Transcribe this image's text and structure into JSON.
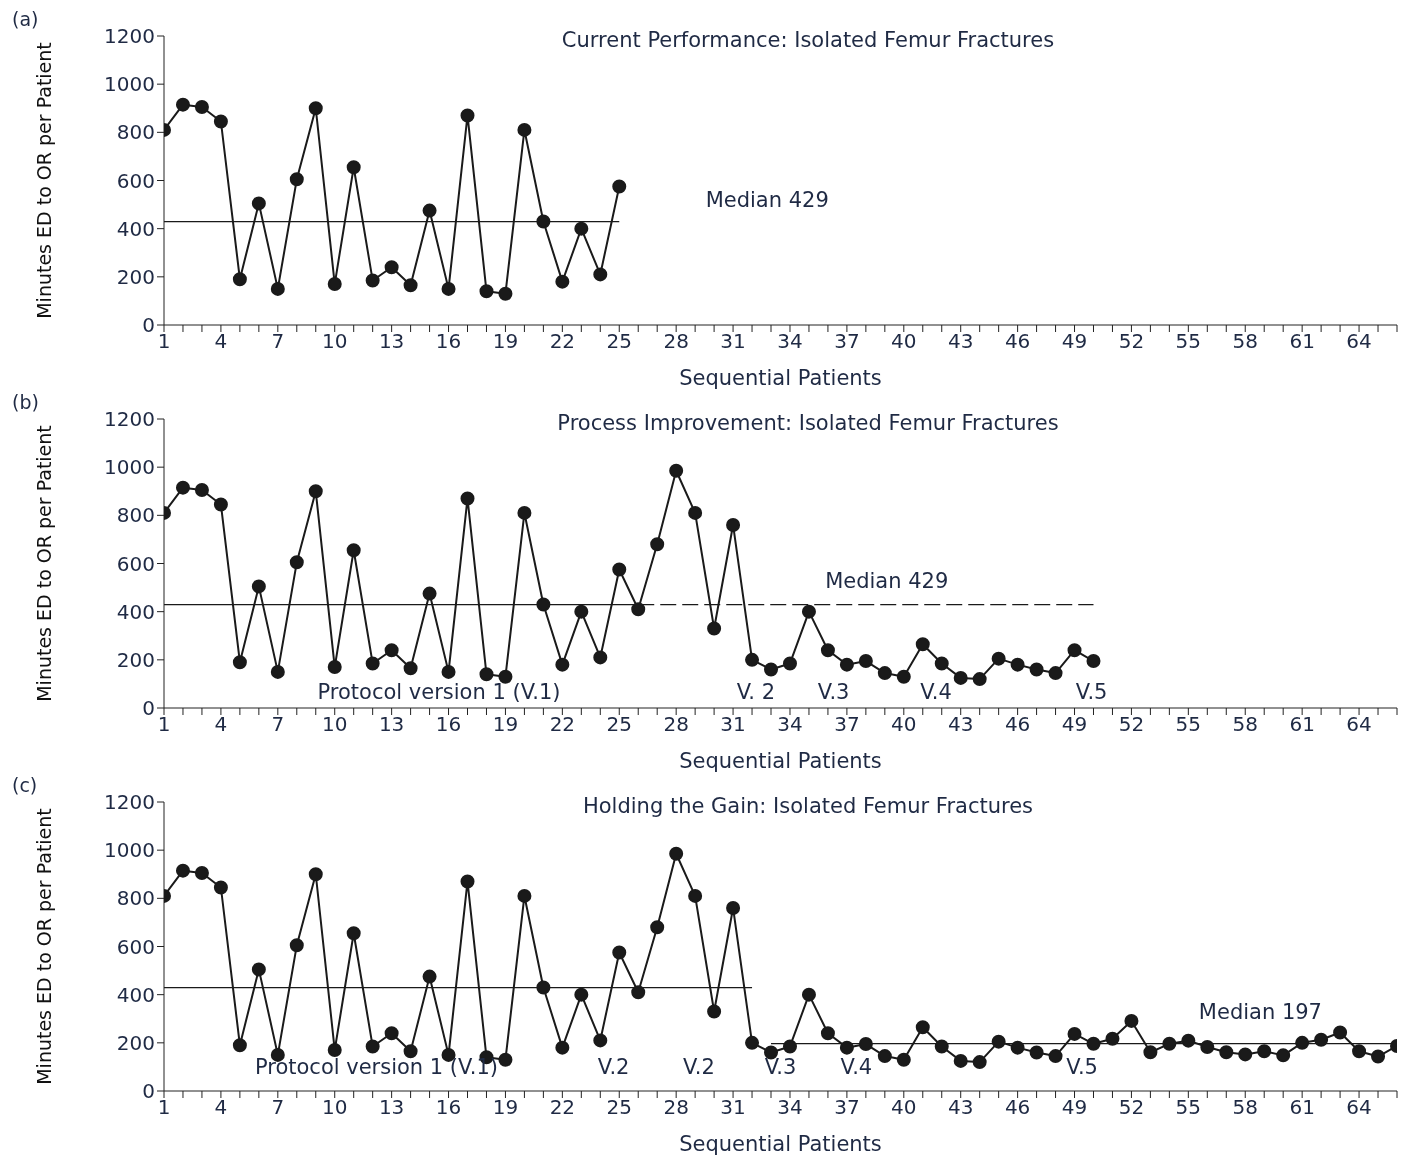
{
  "chart_data": [
    {
      "type": "line",
      "title": "Current Performance: Isolated Femur Fractures",
      "xlabel": "Sequential Patients",
      "ylabel": "Minutes ED to OR per Patient",
      "xlim": [
        1,
        66
      ],
      "ylim": [
        0,
        1200
      ],
      "yticks": [
        0,
        200,
        400,
        600,
        800,
        1000,
        1200
      ],
      "xticks": [
        1,
        {
          "value": 2,
          "label": null
        },
        {
          "value": 3,
          "label": null
        },
        4,
        {
          "value": 5,
          "label": null
        },
        {
          "value": 6,
          "label": null
        },
        7,
        {
          "value": 8,
          "label": null
        },
        {
          "value": 9,
          "label": null
        },
        10,
        {
          "value": 11,
          "label": null
        },
        {
          "value": 12,
          "label": null
        },
        13,
        {
          "value": 14,
          "label": null
        },
        {
          "value": 15,
          "label": null
        },
        16,
        {
          "value": 17,
          "label": null
        },
        {
          "value": 18,
          "label": null
        },
        19,
        {
          "value": 20,
          "label": null
        },
        {
          "value": 21,
          "label": null
        },
        22,
        {
          "value": 23,
          "label": null
        },
        {
          "value": 24,
          "label": null
        },
        25,
        {
          "value": 26,
          "label": null
        },
        {
          "value": 27,
          "label": null
        },
        28,
        {
          "value": 29,
          "label": null
        },
        {
          "value": 30,
          "label": null
        },
        31,
        {
          "value": 32,
          "label": null
        },
        {
          "value": 33,
          "label": null
        },
        34,
        {
          "value": 35,
          "label": null
        },
        {
          "value": 36,
          "label": null
        },
        37,
        {
          "value": 38,
          "label": null
        },
        {
          "value": 39,
          "label": null
        },
        40,
        {
          "value": 41,
          "label": null
        },
        {
          "value": 42,
          "label": null
        },
        43,
        {
          "value": 44,
          "label": null
        },
        {
          "value": 45,
          "label": null
        },
        46,
        {
          "value": 47,
          "label": null
        },
        {
          "value": 48,
          "label": null
        },
        49,
        {
          "value": 50,
          "label": null
        },
        {
          "value": 51,
          "label": null
        },
        52,
        {
          "value": 53,
          "label": null
        },
        {
          "value": 54,
          "label": null
        },
        55,
        {
          "value": 56,
          "label": null
        },
        {
          "value": 57,
          "label": null
        },
        58,
        {
          "value": 59,
          "label": null
        },
        {
          "value": 60,
          "label": null
        },
        61,
        {
          "value": 62,
          "label": null
        },
        {
          "value": 63,
          "label": null
        },
        64,
        {
          "value": 65,
          "label": null
        },
        {
          "value": 66,
          "label": null
        }
      ],
      "series": [
        {
          "color": "#1a1a1a",
          "marker": "circle",
          "x": [
            1,
            2,
            3,
            4,
            5,
            6,
            7,
            8,
            9,
            10,
            11,
            12,
            13,
            14,
            15,
            16,
            17,
            18,
            19,
            20,
            21,
            22,
            23,
            24,
            25
          ],
          "values": [
            810,
            915,
            905,
            845,
            190,
            505,
            150,
            605,
            900,
            170,
            655,
            185,
            240,
            165,
            475,
            150,
            870,
            140,
            130,
            810,
            430,
            180,
            400,
            210,
            575
          ]
        },
        {
          "type": "line",
          "name": "Median 429",
          "color": "#1a1a1a",
          "marker": "none",
          "line_style": "solid",
          "x": [
            1,
            25
          ],
          "values": [
            429,
            429
          ]
        }
      ],
      "annotations": [
        "(a)"
      ]
    },
    {
      "type": "line",
      "title": "Process Improvement: Isolated Femur Fractures",
      "xlabel": "Sequential Patients",
      "ylabel": "Minutes ED to OR per Patient",
      "xlim": [
        1,
        66
      ],
      "ylim": [
        0,
        1200
      ],
      "yticks": [
        0,
        200,
        400,
        600,
        800,
        1000,
        1200
      ],
      "xticks": [
        1,
        {
          "value": 2,
          "label": null
        },
        {
          "value": 3,
          "label": null
        },
        4,
        {
          "value": 5,
          "label": null
        },
        {
          "value": 6,
          "label": null
        },
        7,
        {
          "value": 8,
          "label": null
        },
        {
          "value": 9,
          "label": null
        },
        10,
        {
          "value": 11,
          "label": null
        },
        {
          "value": 12,
          "label": null
        },
        13,
        {
          "value": 14,
          "label": null
        },
        {
          "value": 15,
          "label": null
        },
        16,
        {
          "value": 17,
          "label": null
        },
        {
          "value": 18,
          "label": null
        },
        19,
        {
          "value": 20,
          "label": null
        },
        {
          "value": 21,
          "label": null
        },
        22,
        {
          "value": 23,
          "label": null
        },
        {
          "value": 24,
          "label": null
        },
        25,
        {
          "value": 26,
          "label": null
        },
        {
          "value": 27,
          "label": null
        },
        28,
        {
          "value": 29,
          "label": null
        },
        {
          "value": 30,
          "label": null
        },
        31,
        {
          "value": 32,
          "label": null
        },
        {
          "value": 33,
          "label": null
        },
        34,
        {
          "value": 35,
          "label": null
        },
        {
          "value": 36,
          "label": null
        },
        37,
        {
          "value": 38,
          "label": null
        },
        {
          "value": 39,
          "label": null
        },
        40,
        {
          "value": 41,
          "label": null
        },
        {
          "value": 42,
          "label": null
        },
        43,
        {
          "value": 44,
          "label": null
        },
        {
          "value": 45,
          "label": null
        },
        46,
        {
          "value": 47,
          "label": null
        },
        {
          "value": 48,
          "label": null
        },
        49,
        {
          "value": 50,
          "label": null
        },
        {
          "value": 51,
          "label": null
        },
        52,
        {
          "value": 53,
          "label": null
        },
        {
          "value": 54,
          "label": null
        },
        55,
        {
          "value": 56,
          "label": null
        },
        {
          "value": 57,
          "label": null
        },
        58,
        {
          "value": 59,
          "label": null
        },
        {
          "value": 60,
          "label": null
        },
        61,
        {
          "value": 62,
          "label": null
        },
        {
          "value": 63,
          "label": null
        },
        64,
        {
          "value": 65,
          "label": null
        },
        {
          "value": 66,
          "label": null
        }
      ],
      "series": [
        {
          "color": "#1a1a1a",
          "marker": "circle",
          "x": [
            1,
            2,
            3,
            4,
            5,
            6,
            7,
            8,
            9,
            10,
            11,
            12,
            13,
            14,
            15,
            16,
            17,
            18,
            19,
            20,
            21,
            22,
            23,
            24,
            25,
            26,
            27,
            28,
            29,
            30,
            31,
            32,
            33,
            34,
            35,
            36,
            37,
            38,
            39,
            40,
            41,
            42,
            43,
            44,
            45,
            46,
            47,
            48,
            49,
            50
          ],
          "values": [
            810,
            915,
            905,
            845,
            190,
            505,
            150,
            605,
            900,
            170,
            655,
            185,
            240,
            165,
            475,
            150,
            870,
            140,
            130,
            810,
            430,
            180,
            400,
            210,
            575,
            410,
            680,
            985,
            810,
            330,
            760,
            200,
            160,
            185,
            400,
            240,
            180,
            195,
            145,
            130,
            265,
            185,
            125,
            120,
            205,
            180,
            160,
            145,
            240,
            195
          ]
        },
        {
          "type": "line",
          "color": "#1a1a1a",
          "marker": "none",
          "line_style": "solid",
          "x": [
            1,
            26
          ],
          "values": [
            429,
            429
          ]
        },
        {
          "type": "line",
          "name": "Median 429",
          "color": "#1a1a1a",
          "marker": "none",
          "line_style": "dashed",
          "x": [
            26,
            50
          ],
          "values": [
            429,
            429
          ]
        }
      ],
      "annotations": [
        "(b)",
        "Protocol version 1 (V.1)",
        "V. 2",
        "V.3",
        "V.4",
        "V.5"
      ]
    },
    {
      "type": "line",
      "title": "Holding the Gain: Isolated Femur Fractures",
      "xlabel": "Sequential Patients",
      "ylabel": "Minutes ED to OR per Patient",
      "xlim": [
        1,
        66
      ],
      "ylim": [
        0,
        1200
      ],
      "yticks": [
        0,
        200,
        400,
        600,
        800,
        1000,
        1200
      ],
      "xticks": [
        1,
        {
          "value": 2,
          "label": null
        },
        {
          "value": 3,
          "label": null
        },
        4,
        {
          "value": 5,
          "label": null
        },
        {
          "value": 6,
          "label": null
        },
        7,
        {
          "value": 8,
          "label": null
        },
        {
          "value": 9,
          "label": null
        },
        10,
        {
          "value": 11,
          "label": null
        },
        {
          "value": 12,
          "label": null
        },
        13,
        {
          "value": 14,
          "label": null
        },
        {
          "value": 15,
          "label": null
        },
        16,
        {
          "value": 17,
          "label": null
        },
        {
          "value": 18,
          "label": null
        },
        19,
        {
          "value": 20,
          "label": null
        },
        {
          "value": 21,
          "label": null
        },
        22,
        {
          "value": 23,
          "label": null
        },
        {
          "value": 24,
          "label": null
        },
        25,
        {
          "value": 26,
          "label": null
        },
        {
          "value": 27,
          "label": null
        },
        28,
        {
          "value": 29,
          "label": null
        },
        {
          "value": 30,
          "label": null
        },
        31,
        {
          "value": 32,
          "label": null
        },
        {
          "value": 33,
          "label": null
        },
        34,
        {
          "value": 35,
          "label": null
        },
        {
          "value": 36,
          "label": null
        },
        37,
        {
          "value": 38,
          "label": null
        },
        {
          "value": 39,
          "label": null
        },
        40,
        {
          "value": 41,
          "label": null
        },
        {
          "value": 42,
          "label": null
        },
        43,
        {
          "value": 44,
          "label": null
        },
        {
          "value": 45,
          "label": null
        },
        46,
        {
          "value": 47,
          "label": null
        },
        {
          "value": 48,
          "label": null
        },
        49,
        {
          "value": 50,
          "label": null
        },
        {
          "value": 51,
          "label": null
        },
        52,
        {
          "value": 53,
          "label": null
        },
        {
          "value": 54,
          "label": null
        },
        55,
        {
          "value": 56,
          "label": null
        },
        {
          "value": 57,
          "label": null
        },
        58,
        {
          "value": 59,
          "label": null
        },
        {
          "value": 60,
          "label": null
        },
        61,
        {
          "value": 62,
          "label": null
        },
        {
          "value": 63,
          "label": null
        },
        64,
        {
          "value": 65,
          "label": null
        },
        {
          "value": 66,
          "label": null
        }
      ],
      "series": [
        {
          "color": "#1a1a1a",
          "marker": "circle",
          "x": [
            1,
            2,
            3,
            4,
            5,
            6,
            7,
            8,
            9,
            10,
            11,
            12,
            13,
            14,
            15,
            16,
            17,
            18,
            19,
            20,
            21,
            22,
            23,
            24,
            25,
            26,
            27,
            28,
            29,
            30,
            31,
            32,
            33,
            34,
            35,
            36,
            37,
            38,
            39,
            40,
            41,
            42,
            43,
            44,
            45,
            46,
            47,
            48,
            49,
            50,
            51,
            52,
            53,
            54,
            55,
            56,
            57,
            58,
            59,
            60,
            61,
            62,
            63,
            64,
            65,
            66
          ],
          "values": [
            810,
            915,
            905,
            845,
            190,
            505,
            150,
            605,
            900,
            170,
            655,
            185,
            240,
            165,
            475,
            150,
            870,
            140,
            130,
            810,
            430,
            180,
            400,
            210,
            575,
            410,
            680,
            985,
            810,
            330,
            760,
            200,
            160,
            185,
            400,
            240,
            180,
            195,
            145,
            130,
            265,
            185,
            125,
            120,
            205,
            180,
            160,
            145,
            237,
            196,
            217,
            291,
            161,
            196,
            209,
            183,
            161,
            152,
            165,
            148,
            200,
            213,
            243,
            165,
            143,
            187
          ]
        },
        {
          "type": "line",
          "color": "#1a1a1a",
          "marker": "none",
          "line_style": "solid",
          "x": [
            1,
            32
          ],
          "values": [
            429,
            429
          ]
        },
        {
          "type": "line",
          "name": "Median 197",
          "color": "#1a1a1a",
          "marker": "none",
          "line_style": "solid",
          "x": [
            33,
            66
          ],
          "values": [
            197,
            197
          ]
        }
      ],
      "annotations": [
        "(c)",
        "Protocol version 1 (V.1)",
        "V.2",
        "V.2",
        "V.3",
        "V.4",
        "V.5"
      ]
    }
  ]
}
